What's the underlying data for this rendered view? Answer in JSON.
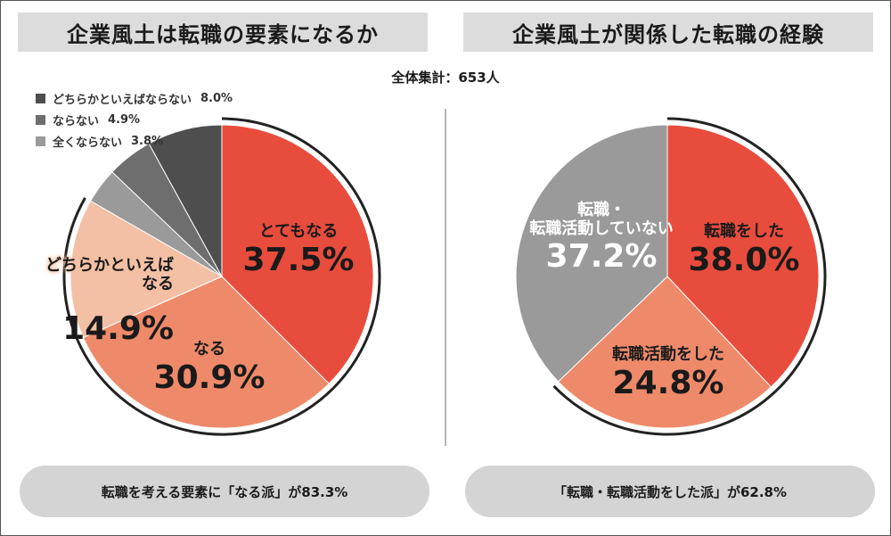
{
  "total": "全体集計：653人",
  "chart_data": [
    {
      "type": "pie",
      "title": "企業風土は転職の要素になるか",
      "slices": [
        {
          "label": "とてもなる",
          "value": 37.5,
          "color": "#e84c3d"
        },
        {
          "label": "なる",
          "value": 30.9,
          "color": "#ee8a6a"
        },
        {
          "label": "どちらかといえばなる",
          "value": 14.9,
          "color": "#f3c0a6"
        },
        {
          "label": "全くならない",
          "value": 3.8,
          "color": "#9a9a9a"
        },
        {
          "label": "ならない",
          "value": 4.9,
          "color": "#6e6e6e"
        },
        {
          "label": "どちらかといえばならない",
          "value": 8.0,
          "color": "#4e4e4e"
        }
      ],
      "labels": [
        {
          "name": "とてもなる",
          "pct": "37.5%"
        },
        {
          "name": "なる",
          "pct": "30.9%"
        },
        {
          "name": "どちらかといえば\nなる",
          "pct": "14.9%"
        }
      ],
      "legend": [
        {
          "label": "どちらかといえばならない",
          "value": "8.0%",
          "color": "#4e4e4e"
        },
        {
          "label": "ならない",
          "value": "4.9%",
          "color": "#6e6e6e"
        },
        {
          "label": "全くならない",
          "value": "3.8%",
          "color": "#9a9a9a"
        }
      ],
      "summary": "転職を考える要素に「なる派」が83.3%"
    },
    {
      "type": "pie",
      "title": "企業風土が関係した転職の経験",
      "slices": [
        {
          "label": "転職をした",
          "value": 38.0,
          "color": "#e84c3d"
        },
        {
          "label": "転職活動をした",
          "value": 24.8,
          "color": "#ee8a6a"
        },
        {
          "label": "転職・転職活動していない",
          "value": 37.2,
          "color": "#9a9a9a"
        }
      ],
      "labels": [
        {
          "name": "転職をした",
          "pct": "38.0%"
        },
        {
          "name": "転職活動をした",
          "pct": "24.8%"
        },
        {
          "name": "転職・\n転職活動していない",
          "pct": "37.2%"
        }
      ],
      "summary": "「転職・転職活動をした派」が62.8%"
    }
  ]
}
